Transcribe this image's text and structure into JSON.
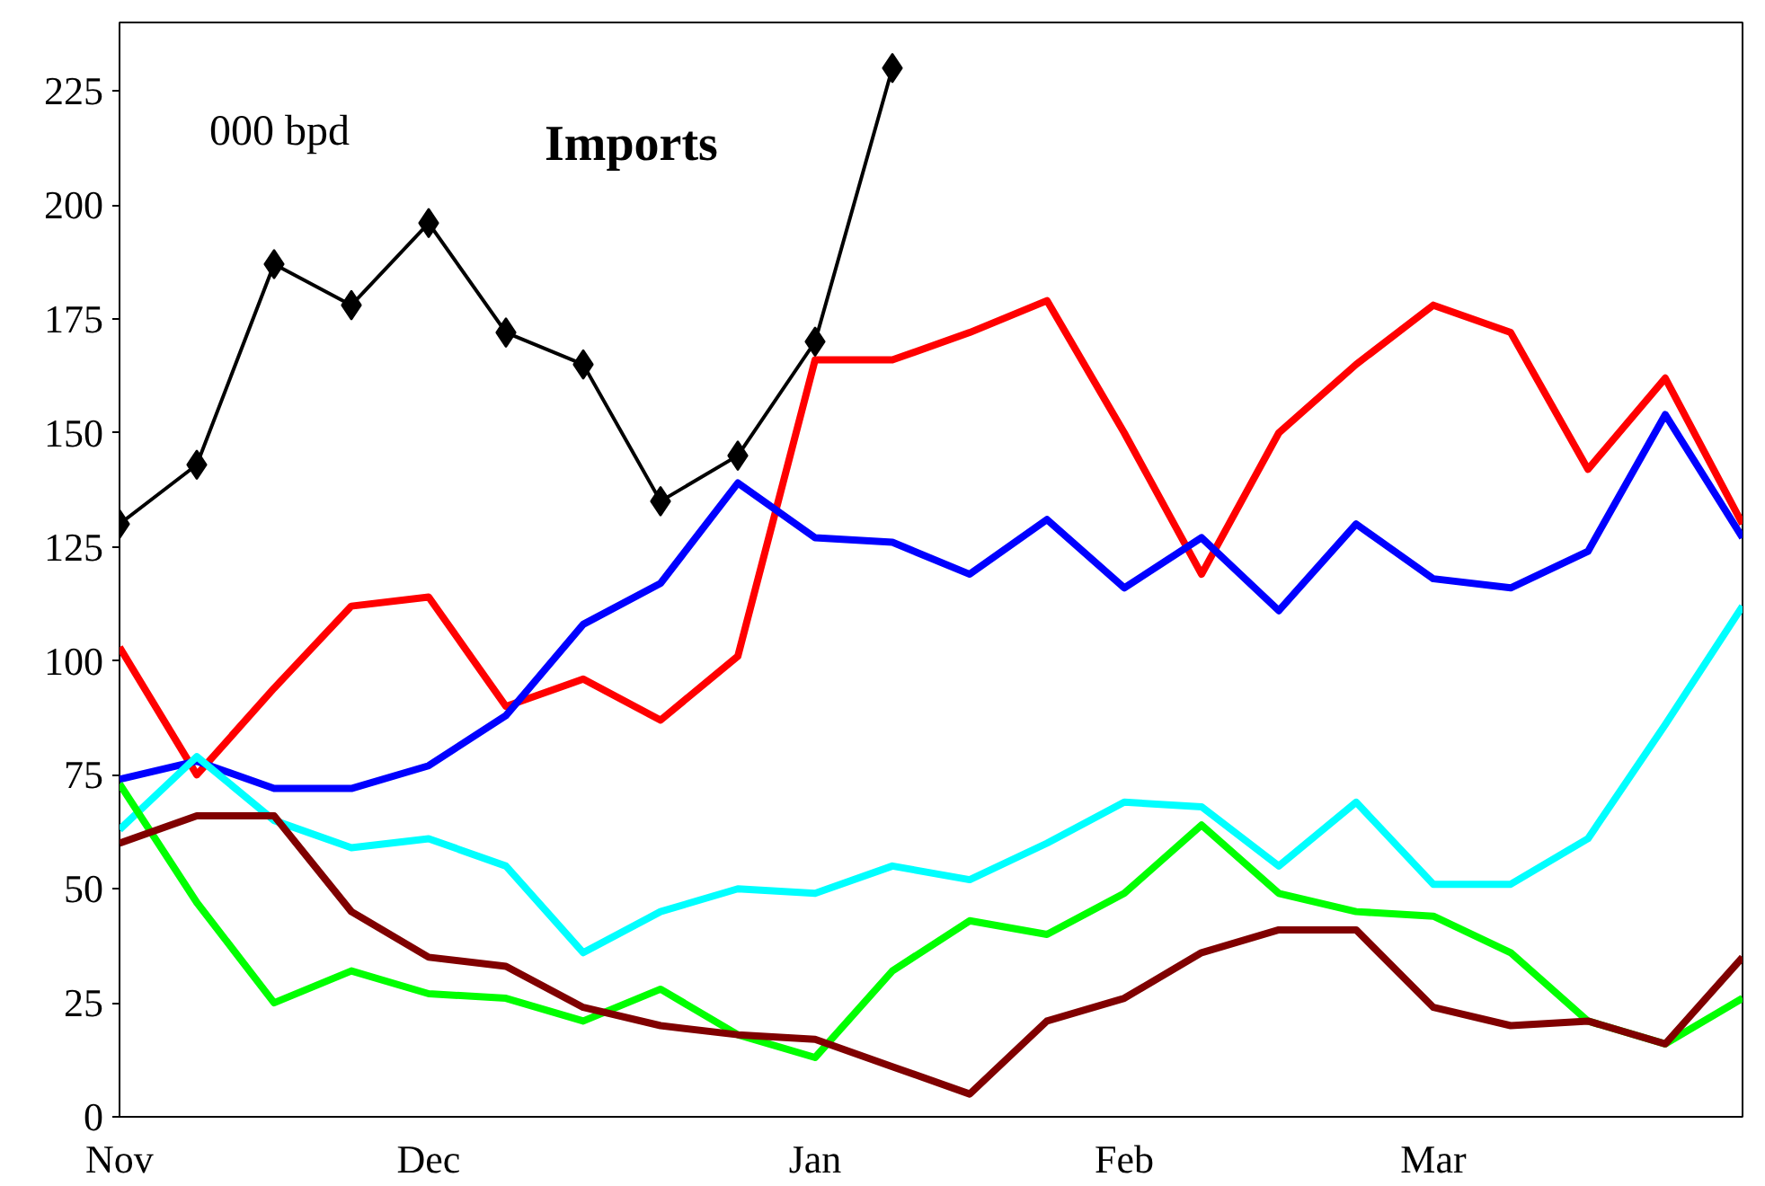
{
  "chart_data": {
    "type": "line",
    "annotations": [
      "000 bpd"
    ],
    "categories": [
      "Nov",
      null,
      null,
      null,
      "Dec",
      null,
      null,
      null,
      null,
      "Jan",
      null,
      null,
      null,
      "Feb",
      null,
      null,
      null,
      "Mar",
      null,
      null,
      null,
      null
    ],
    "ylim": [
      0,
      240
    ],
    "yticks": [
      0,
      25,
      50,
      75,
      100,
      125,
      150,
      175,
      200,
      225
    ],
    "grid": false,
    "legend": false,
    "line_style": "solid",
    "series": [
      {
        "color": "#ff0000",
        "values": [
          103,
          75,
          94,
          112,
          114,
          90,
          96,
          87,
          101,
          166,
          166,
          172,
          179,
          150,
          119,
          150,
          165,
          178,
          172,
          142,
          162,
          130
        ]
      },
      {
        "color": "#0000ff",
        "values": [
          74,
          78,
          72,
          72,
          77,
          88,
          108,
          117,
          139,
          127,
          126,
          119,
          131,
          116,
          127,
          111,
          130,
          118,
          116,
          124,
          154,
          127
        ]
      },
      {
        "color": "#00ffff",
        "values": [
          63,
          79,
          65,
          59,
          61,
          55,
          36,
          45,
          50,
          49,
          55,
          52,
          60,
          69,
          68,
          55,
          69,
          51,
          51,
          61,
          86,
          112
        ]
      },
      {
        "color": "#00ff00",
        "values": [
          73,
          47,
          25,
          32,
          27,
          26,
          21,
          28,
          18,
          13,
          32,
          43,
          40,
          49,
          64,
          49,
          45,
          44,
          36,
          21,
          16,
          26
        ]
      },
      {
        "color": "#800000",
        "values": [
          60,
          66,
          66,
          45,
          35,
          33,
          24,
          20,
          18,
          17,
          11,
          5,
          21,
          26,
          36,
          41,
          41,
          24,
          20,
          21,
          16,
          35
        ]
      },
      {
        "name": "Imports",
        "color": "#000000",
        "marker": "diamond",
        "values": [
          130,
          143,
          187,
          178,
          196,
          172,
          165,
          135,
          145,
          170,
          230,
          null,
          null,
          null,
          null,
          null,
          null,
          null,
          null,
          null,
          null,
          null
        ]
      }
    ]
  }
}
